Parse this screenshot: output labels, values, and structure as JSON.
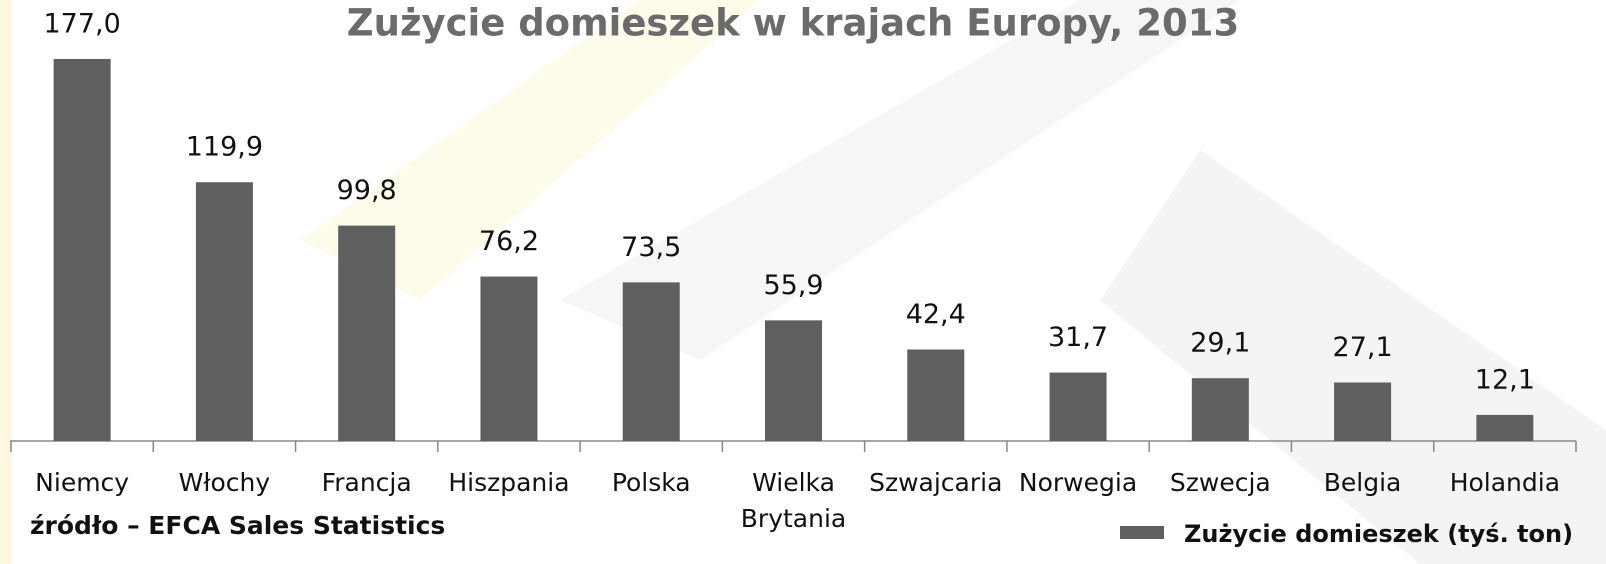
{
  "chart_data": {
    "type": "bar",
    "title": "Zużycie domieszek w krajach Europy, 2013",
    "source": "źródło – EFCA Sales Statistics",
    "categories": [
      "Niemcy",
      "Włochy",
      "Francja",
      "Hiszpania",
      "Polska",
      "Wielka\nBrytania",
      "Szwajcaria",
      "Norwegia",
      "Szwecja",
      "Belgia",
      "Holandia"
    ],
    "series": [
      {
        "name": "Zużycie domieszek (tyś. ton)",
        "color": "#5f5f5f",
        "values": [
          177.0,
          119.9,
          99.8,
          76.2,
          73.5,
          55.9,
          42.4,
          31.7,
          29.1,
          27.1,
          12.1
        ],
        "value_labels": [
          "177,0",
          "119,9",
          "99,8",
          "76,2",
          "73,5",
          "55,9",
          "42,4",
          "31,7",
          "29,1",
          "27,1",
          "12,1"
        ]
      }
    ],
    "ylim": [
      0,
      180
    ],
    "legend": "bottom-right"
  }
}
